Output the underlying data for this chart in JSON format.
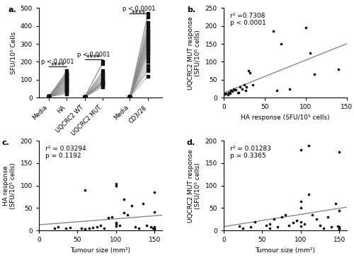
{
  "panel_a": {
    "pairs": [
      [
        3,
        60
      ],
      [
        5,
        120
      ],
      [
        2,
        80
      ],
      [
        4,
        150
      ],
      [
        8,
        90
      ],
      [
        5,
        110
      ],
      [
        10,
        100
      ],
      [
        3,
        75
      ],
      [
        4,
        85
      ],
      [
        7,
        95
      ],
      [
        3,
        70
      ],
      [
        6,
        130
      ],
      [
        2,
        50
      ],
      [
        5,
        65
      ],
      [
        8,
        140
      ],
      [
        4,
        55
      ],
      [
        3,
        45
      ],
      [
        7,
        105
      ],
      [
        4,
        115
      ],
      [
        6,
        125
      ],
      [
        9,
        135
      ],
      [
        2,
        40
      ],
      [
        4,
        30
      ],
      [
        7,
        20
      ],
      [
        3,
        35
      ]
    ],
    "pairs2": [
      [
        5,
        80
      ],
      [
        8,
        200
      ],
      [
        4,
        120
      ],
      [
        6,
        130
      ],
      [
        5,
        90
      ],
      [
        7,
        75
      ],
      [
        4,
        100
      ],
      [
        5,
        150
      ],
      [
        6,
        80
      ],
      [
        8,
        110
      ],
      [
        4,
        70
      ],
      [
        5,
        60
      ],
      [
        60,
        140
      ],
      [
        65,
        190
      ],
      [
        3,
        85
      ],
      [
        4,
        95
      ]
    ],
    "pairs3": [
      [
        5,
        250
      ],
      [
        4,
        300
      ],
      [
        5,
        350
      ],
      [
        4,
        400
      ],
      [
        5,
        470
      ],
      [
        4,
        280
      ],
      [
        5,
        320
      ],
      [
        4,
        370
      ],
      [
        5,
        150
      ],
      [
        4,
        200
      ],
      [
        5,
        220
      ],
      [
        4,
        260
      ],
      [
        5,
        290
      ],
      [
        4,
        330
      ],
      [
        5,
        180
      ],
      [
        4,
        120
      ],
      [
        5,
        160
      ],
      [
        4,
        240
      ],
      [
        5,
        310
      ],
      [
        4,
        270
      ],
      [
        5,
        340
      ],
      [
        4,
        360
      ],
      [
        5,
        380
      ],
      [
        4,
        420
      ],
      [
        5,
        450
      ]
    ],
    "ylabel": "SFU/10⁵ Cells",
    "ylim": [
      0,
      500
    ],
    "yticks": [
      0,
      100,
      200,
      300,
      400,
      500
    ],
    "xtick_labels": [
      "Media",
      "HA",
      "UQCRC2 WT",
      "UQCRC2 MUT",
      "Media",
      "CD3/28"
    ]
  },
  "panel_b": {
    "x": [
      2,
      3,
      5,
      6,
      7,
      8,
      9,
      10,
      12,
      13,
      15,
      17,
      18,
      20,
      22,
      25,
      27,
      28,
      30,
      32,
      35,
      60,
      65,
      70,
      80,
      100,
      105,
      110,
      140
    ],
    "y": [
      10,
      12,
      8,
      14,
      15,
      12,
      20,
      18,
      25,
      22,
      22,
      15,
      15,
      30,
      25,
      35,
      20,
      30,
      75,
      70,
      35,
      185,
      20,
      150,
      25,
      195,
      125,
      65,
      80
    ],
    "r2": "0.7308",
    "p": "< 0.0001",
    "xlabel": "HA response (SFU/10⁵ cells)",
    "ylabel": "UQCRC2 MUT response\n(SFU/10⁵ cells)",
    "xlim": [
      0,
      150
    ],
    "ylim": [
      0,
      250
    ],
    "yticks": [
      0,
      50,
      100,
      150,
      200,
      250
    ],
    "xticks": [
      0,
      50,
      100,
      150
    ]
  },
  "panel_c": {
    "x": [
      20,
      25,
      35,
      40,
      55,
      60,
      60,
      65,
      70,
      75,
      80,
      85,
      90,
      95,
      100,
      100,
      100,
      100,
      100,
      105,
      110,
      110,
      115,
      120,
      125,
      130,
      135,
      140,
      145,
      148,
      150,
      150,
      150,
      150,
      150
    ],
    "y": [
      5,
      8,
      5,
      7,
      5,
      90,
      3,
      5,
      6,
      8,
      12,
      5,
      28,
      30,
      105,
      100,
      17,
      15,
      10,
      12,
      70,
      40,
      35,
      55,
      8,
      5,
      60,
      12,
      8,
      5,
      85,
      42,
      8,
      5,
      3
    ],
    "r2": "0.03294",
    "p": "0.1192",
    "xlabel": "Tumour size (mm²)",
    "ylabel": "HA response\n(SFU/10⁵ cells)",
    "xlim": [
      0,
      160
    ],
    "ylim": [
      0,
      200
    ],
    "yticks": [
      0,
      50,
      100,
      150,
      200
    ],
    "xticks": [
      0,
      50,
      100,
      150
    ]
  },
  "panel_d": {
    "x": [
      20,
      25,
      35,
      40,
      55,
      60,
      60,
      65,
      70,
      75,
      80,
      85,
      90,
      95,
      100,
      100,
      100,
      100,
      100,
      105,
      110,
      110,
      115,
      120,
      125,
      130,
      135,
      140,
      145,
      148,
      150,
      150,
      150,
      150,
      150
    ],
    "y": [
      10,
      5,
      8,
      20,
      12,
      15,
      5,
      25,
      8,
      30,
      35,
      12,
      18,
      22,
      65,
      50,
      180,
      20,
      10,
      15,
      80,
      190,
      35,
      25,
      12,
      5,
      30,
      8,
      60,
      10,
      175,
      45,
      8,
      5,
      3
    ],
    "r2": "0.01283",
    "p": "0.3365",
    "xlabel": "Tumour size (mm²)",
    "ylabel": "UQCRC2 MUT response\n(SFU/10⁵ cells)",
    "xlim": [
      0,
      160
    ],
    "ylim": [
      0,
      200
    ],
    "yticks": [
      0,
      50,
      100,
      150,
      200
    ],
    "xticks": [
      0,
      50,
      100,
      150
    ]
  },
  "line_color": "#888888",
  "dot_color": "#111111",
  "panel_labels": [
    "a.",
    "b.",
    "c.",
    "d."
  ],
  "panel_label_fontsize": 8,
  "tick_fontsize": 6.5,
  "label_fontsize": 6.5,
  "annot_fontsize": 6.5
}
